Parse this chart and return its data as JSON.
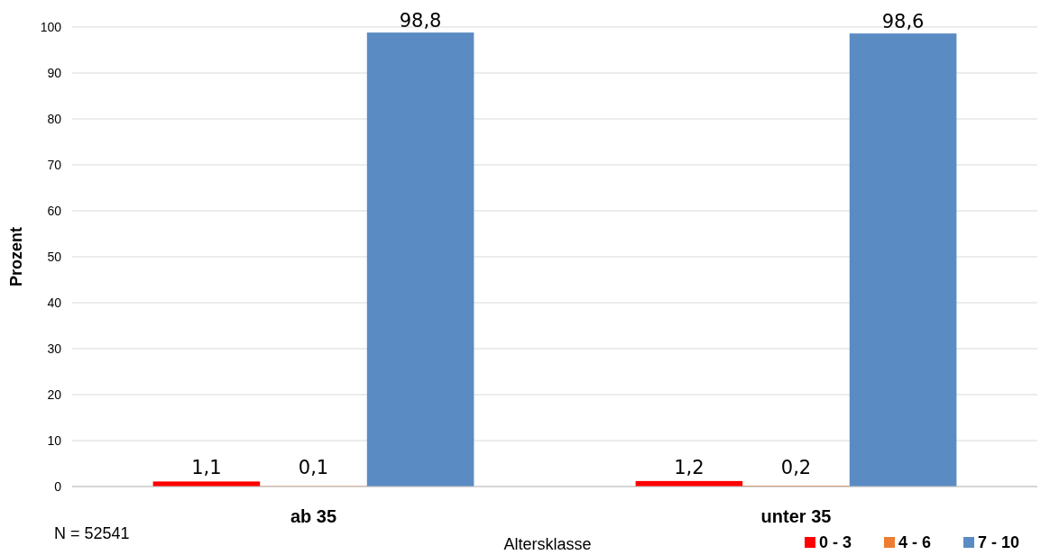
{
  "chart_data": {
    "type": "bar",
    "xlabel": "Altersklasse",
    "ylabel": "Prozent",
    "categories": [
      "ab 35",
      "unter 35"
    ],
    "series": [
      {
        "name": "0 - 3",
        "color": "#ff0000",
        "values": [
          1.1,
          1.2
        ],
        "value_labels": [
          "1,1",
          "1,2"
        ]
      },
      {
        "name": "4 - 6",
        "color": "#ed7d31",
        "values": [
          0.1,
          0.2
        ],
        "value_labels": [
          "0,1",
          "0,2"
        ]
      },
      {
        "name": "7 - 10",
        "color": "#5b8bc3",
        "values": [
          98.8,
          98.6
        ],
        "value_labels": [
          "98,8",
          "98,6"
        ]
      }
    ],
    "ylim": [
      0,
      100
    ],
    "yticks": [
      0,
      10,
      20,
      30,
      40,
      50,
      60,
      70,
      80,
      90,
      100
    ],
    "grid": "y",
    "legend": "bottom right",
    "annotations": [
      "N = 52541"
    ]
  }
}
